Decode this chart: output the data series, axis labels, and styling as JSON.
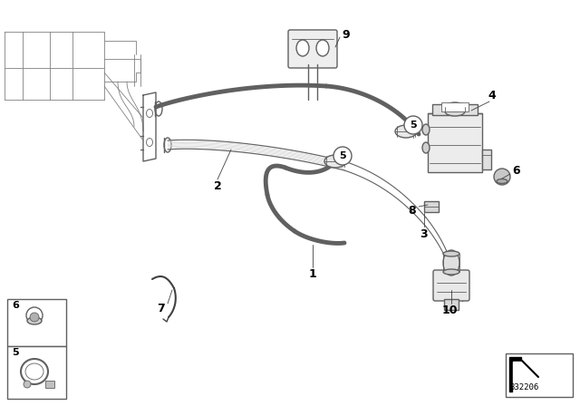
{
  "background_color": "#ffffff",
  "line_color": "#606060",
  "dark_color": "#404040",
  "thin_color": "#808080",
  "diagram_number": "332206",
  "fig_width": 6.4,
  "fig_height": 4.48,
  "dpi": 100,
  "lw_hose": 3.5,
  "lw_main": 1.0,
  "lw_thin": 0.6,
  "lw_connector": 2.0
}
